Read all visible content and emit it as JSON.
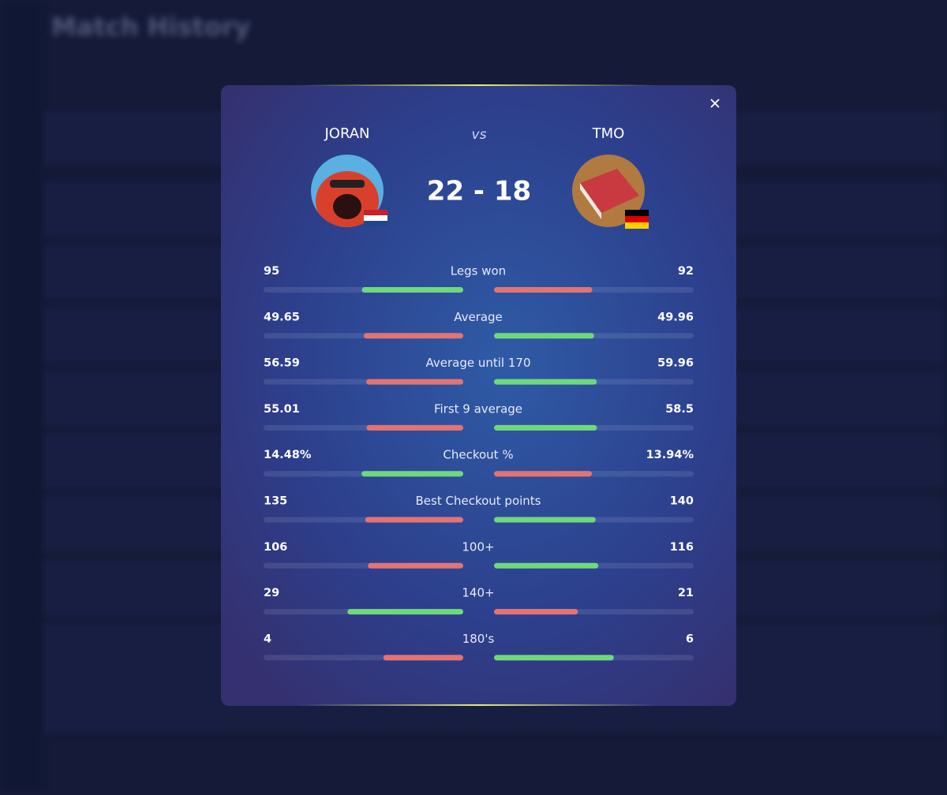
{
  "background": {
    "title": "Match History"
  },
  "modal": {
    "player_left": {
      "name": "JORAN"
    },
    "player_right": {
      "name": "TMO"
    },
    "versus": "vs",
    "score": "22 - 18",
    "stats": [
      {
        "label": "Legs won",
        "left": 95,
        "right": 92
      },
      {
        "label": "Average",
        "left": 49.65,
        "right": 49.96
      },
      {
        "label": "Average until 170",
        "left": 56.59,
        "right": 59.96
      },
      {
        "label": "First 9 average",
        "left": 55.01,
        "right": 58.5
      },
      {
        "label": "Checkout %",
        "left": {
          "value": 14.48,
          "label": "14.48%"
        },
        "right": {
          "value": 13.94,
          "label": "13.94%"
        }
      },
      {
        "label": "Best Checkout points",
        "left": 135,
        "right": 140
      },
      {
        "label": "100+",
        "left": 106,
        "right": 116
      },
      {
        "label": "140+",
        "left": 29,
        "right": 21
      },
      {
        "label": "180's",
        "left": 4,
        "right": 6
      }
    ]
  }
}
